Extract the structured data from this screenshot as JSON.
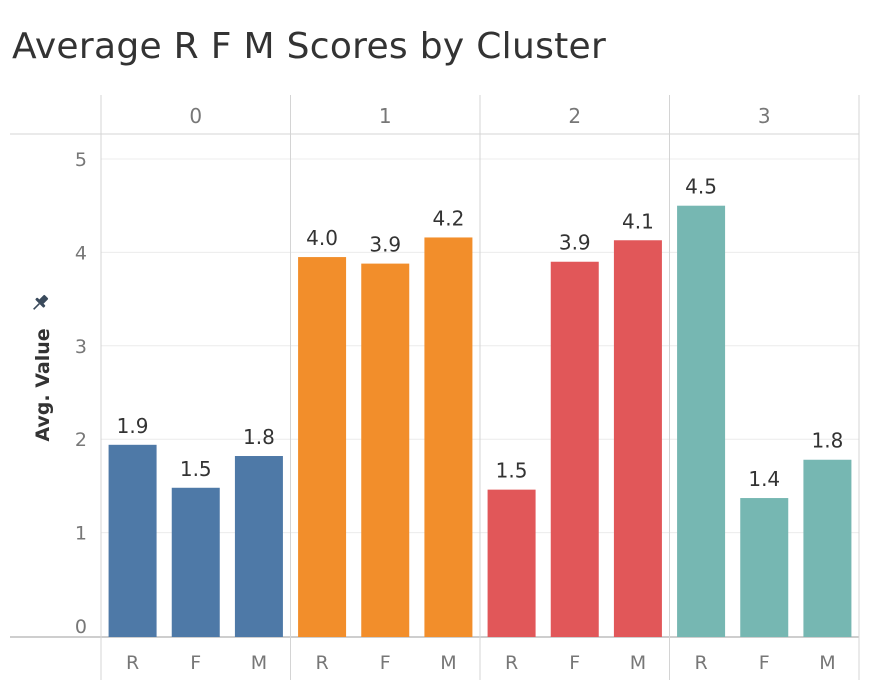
{
  "title": "Average R F M Scores by Cluster",
  "chart_data": {
    "type": "bar",
    "title": "Average R F M Scores by Cluster",
    "ylabel": "Avg. Value",
    "xlabel": "",
    "ylim": [
      0,
      5.35
    ],
    "yticks": [
      0,
      1,
      2,
      3,
      4,
      5
    ],
    "grid": true,
    "clusters": [
      {
        "label": "0",
        "color": "#4e79a7",
        "bars": [
          {
            "metric": "R",
            "value": 1.94,
            "label": "1.9"
          },
          {
            "metric": "F",
            "value": 1.48,
            "label": "1.5"
          },
          {
            "metric": "M",
            "value": 1.82,
            "label": "1.8"
          }
        ]
      },
      {
        "label": "1",
        "color": "#f28e2b",
        "bars": [
          {
            "metric": "R",
            "value": 3.95,
            "label": "4.0"
          },
          {
            "metric": "F",
            "value": 3.88,
            "label": "3.9"
          },
          {
            "metric": "M",
            "value": 4.16,
            "label": "4.2"
          }
        ]
      },
      {
        "label": "2",
        "color": "#e15759",
        "bars": [
          {
            "metric": "R",
            "value": 1.46,
            "label": "1.5"
          },
          {
            "metric": "F",
            "value": 3.9,
            "label": "3.9"
          },
          {
            "metric": "M",
            "value": 4.13,
            "label": "4.1"
          }
        ]
      },
      {
        "label": "3",
        "color": "#76b7b2",
        "bars": [
          {
            "metric": "R",
            "value": 4.5,
            "label": "4.5"
          },
          {
            "metric": "F",
            "value": 1.37,
            "label": "1.4"
          },
          {
            "metric": "M",
            "value": 1.78,
            "label": "1.8"
          }
        ]
      }
    ]
  },
  "icons": {
    "axis_pin": "pin-icon"
  }
}
